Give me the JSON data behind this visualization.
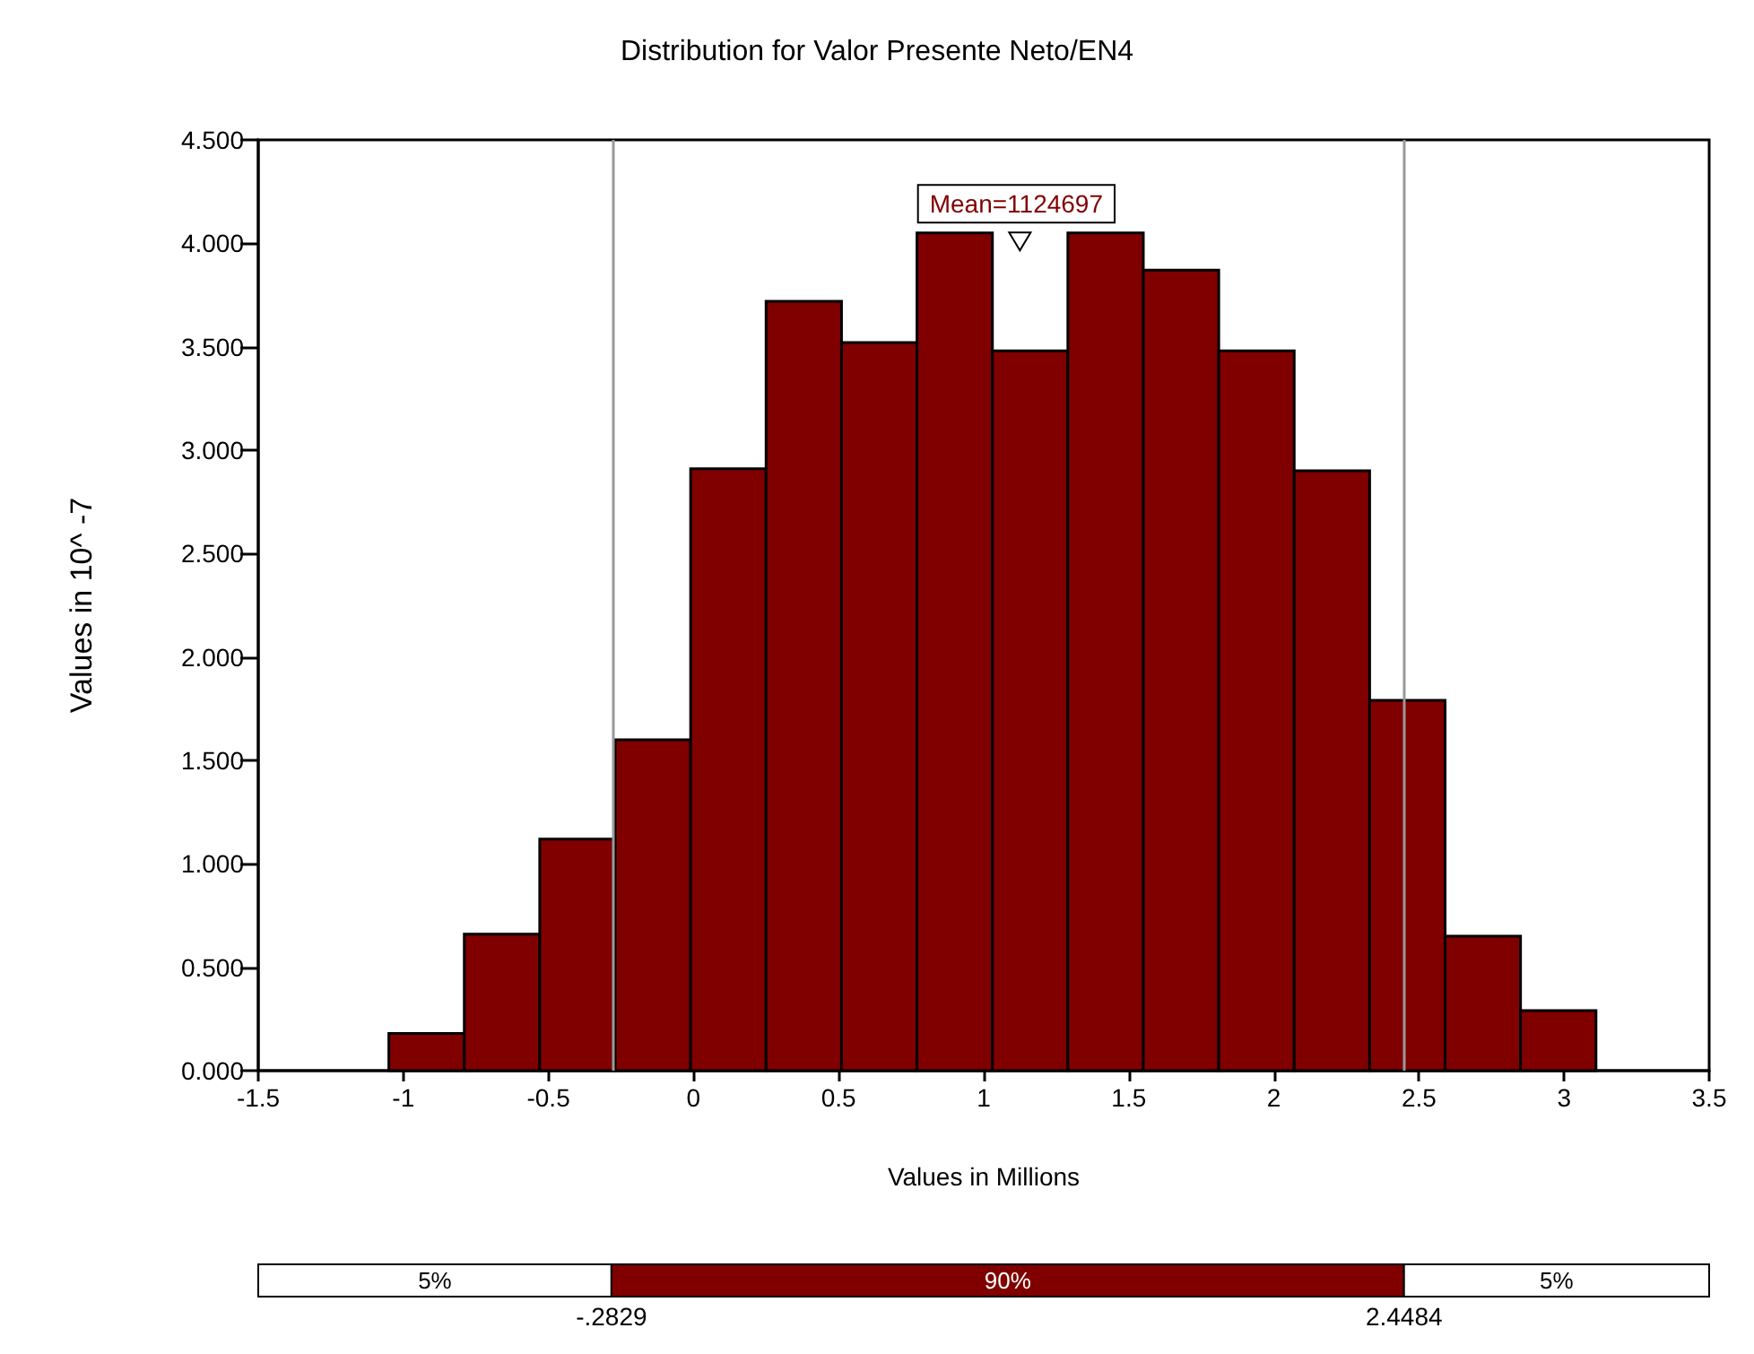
{
  "chart_data": {
    "type": "histogram",
    "title": "Distribution for Valor Presente Neto/EN4",
    "xlabel": "Values in Millions",
    "ylabel": "Values in 10^ -7",
    "bins": [
      -1.05,
      -0.79,
      -0.53,
      -0.27,
      -0.01,
      0.25,
      0.51,
      0.77,
      1.03,
      1.29,
      1.55,
      1.81,
      2.07,
      2.33,
      2.59,
      2.85,
      3.11
    ],
    "values": [
      0.18,
      0.66,
      1.12,
      1.6,
      2.91,
      3.72,
      3.52,
      4.05,
      3.48,
      4.05,
      3.87,
      3.48,
      2.9,
      1.79,
      0.65,
      0.29
    ],
    "color": "#800000",
    "xlim": [
      -1.5,
      3.5
    ],
    "xticks": [
      -1.5,
      -1,
      -0.5,
      0,
      0.5,
      1,
      1.5,
      2,
      2.5,
      3,
      3.5
    ],
    "ylim": [
      0,
      4.5
    ],
    "yticks": [
      {
        "value": 0,
        "label": "0.000"
      },
      {
        "value": 0.5,
        "label": "0.500"
      },
      {
        "value": 1,
        "label": "1.000"
      },
      {
        "value": 1.5,
        "label": "1.500"
      },
      {
        "value": 2,
        "label": "2.000"
      },
      {
        "value": 2.5,
        "label": "2.500"
      },
      {
        "value": 3,
        "label": "3.000"
      },
      {
        "value": 3.5,
        "label": "3.500"
      },
      {
        "value": 4,
        "label": "4.000"
      },
      {
        "value": 4.5,
        "label": "4.500"
      }
    ],
    "ref_lines": [
      {
        "axis": "x",
        "value": -0.2829,
        "color": "#999999"
      },
      {
        "axis": "x",
        "value": 2.4484,
        "color": "#999999"
      }
    ],
    "annotations": [
      {
        "text": "Mean=1124697",
        "x": 1.124697,
        "y": 4.0
      },
      "5%",
      "90%",
      "5%",
      "-.2829",
      "2.4484"
    ],
    "grid": false
  }
}
